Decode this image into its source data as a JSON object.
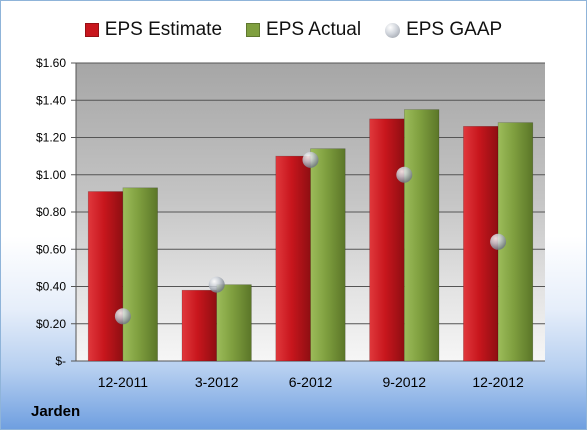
{
  "company": "Jarden",
  "colors": {
    "estimate": "#c8161d",
    "actual": "#7f9f3f",
    "gaap": "#a9aeb6"
  },
  "chart_data": {
    "type": "bar",
    "categories": [
      "12-2011",
      "3-2012",
      "6-2012",
      "9-2012",
      "12-2012"
    ],
    "series": [
      {
        "name": "EPS Estimate",
        "kind": "bar",
        "values": [
          0.91,
          0.38,
          1.1,
          1.3,
          1.26
        ]
      },
      {
        "name": "EPS Actual",
        "kind": "bar",
        "values": [
          0.93,
          0.41,
          1.14,
          1.35,
          1.28
        ]
      },
      {
        "name": "EPS GAAP",
        "kind": "marker",
        "values": [
          0.24,
          0.41,
          1.08,
          1.0,
          0.64
        ]
      }
    ],
    "ylim": [
      0,
      1.6
    ],
    "yticks": [
      0,
      0.2,
      0.4,
      0.6,
      0.8,
      1.0,
      1.2,
      1.4,
      1.6
    ],
    "ytick_labels": [
      "$-",
      "$0.20",
      "$0.40",
      "$0.60",
      "$0.80",
      "$1.00",
      "$1.20",
      "$1.40",
      "$1.60"
    ],
    "grid": true,
    "legend_position": "top"
  }
}
